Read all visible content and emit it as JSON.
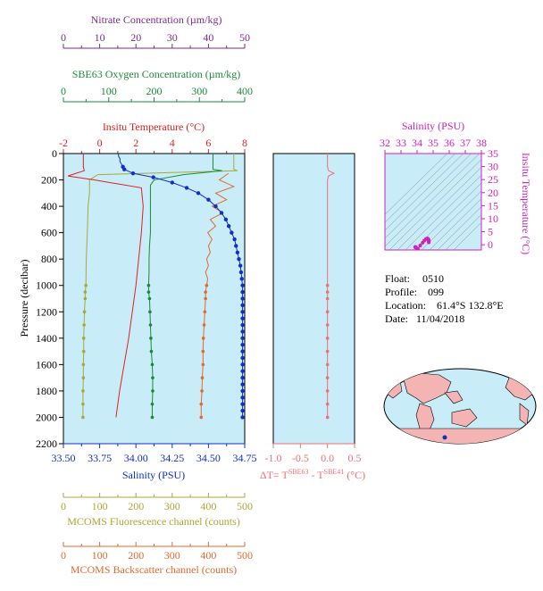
{
  "float_info": {
    "float_label": "Float:",
    "float_value": "0510",
    "profile_label": "Profile:",
    "profile_value": "099",
    "location_label": "Location:",
    "location_value": "61.4°S  132.8°E",
    "date_label": "Date:",
    "date_value": "11/04/2018"
  },
  "colors": {
    "nitrate": "#7b2a8c",
    "oxygen": "#1a8a3a",
    "temperature": "#e02020",
    "salinity": "#1030c8",
    "fluorescence": "#a8a838",
    "backscatter": "#e06a30",
    "delta": "#f07070",
    "ts": "#d020c0",
    "panel_bg": "#c8ecf8"
  },
  "chart_data": [
    {
      "type": "line",
      "name": "main-profile",
      "ylabel": "Pressure (decibar)",
      "y_ticks": [
        0,
        200,
        400,
        600,
        800,
        1000,
        1200,
        1400,
        1600,
        1800,
        2000,
        2200
      ],
      "ylim": [
        2200,
        0
      ],
      "axes": {
        "nitrate": {
          "label": "Nitrate Concentration (µm/kg)",
          "ticks": [
            0,
            10,
            20,
            30,
            40,
            50
          ],
          "range": [
            0,
            50
          ]
        },
        "oxygen": {
          "label": "SBE63 Oxygen Concentration (µm/kg)",
          "ticks": [
            0,
            100,
            200,
            300,
            400
          ],
          "range": [
            0,
            400
          ]
        },
        "temperature": {
          "label": "Insitu Temperature (°C)",
          "ticks": [
            -2,
            0,
            2,
            4,
            6,
            8
          ],
          "range": [
            -2,
            8
          ]
        },
        "salinity": {
          "label": "Salinity (PSU)",
          "ticks": [
            "33.50",
            "33.75",
            "34.00",
            "34.25",
            "34.50",
            "34.75"
          ],
          "range": [
            33.5,
            34.75
          ]
        },
        "fluorescence": {
          "label": "MCOMS Fluorescence channel (counts)",
          "ticks": [
            0,
            100,
            200,
            300,
            400,
            500
          ],
          "range": [
            0,
            500
          ]
        },
        "backscatter": {
          "label": "MCOMS Backscatter channel (counts)",
          "ticks": [
            0,
            100,
            200,
            300,
            400,
            500
          ],
          "range": [
            0,
            500
          ]
        }
      },
      "series": [
        {
          "name": "Salinity",
          "p": [
            0,
            20,
            40,
            60,
            80,
            100,
            120,
            150,
            180,
            220,
            260,
            300,
            350,
            400,
            450,
            500,
            550,
            600,
            650,
            700,
            750,
            800,
            850,
            900,
            950,
            1000,
            1050,
            1100,
            1150,
            1200,
            1250,
            1300,
            1350,
            1400,
            1450,
            1500,
            1550,
            1600,
            1650,
            1700,
            1750,
            1800,
            1850,
            1900,
            1950,
            2000
          ],
          "v": [
            33.88,
            33.88,
            33.89,
            33.89,
            33.9,
            33.91,
            33.92,
            33.98,
            34.12,
            34.25,
            34.35,
            34.43,
            34.5,
            34.55,
            34.59,
            34.62,
            34.64,
            34.66,
            34.68,
            34.69,
            34.7,
            34.71,
            34.72,
            34.725,
            34.73,
            34.735,
            34.735,
            34.735,
            34.735,
            34.735,
            34.735,
            34.735,
            34.735,
            34.735,
            34.735,
            34.735,
            34.735,
            34.735,
            34.735,
            34.735,
            34.735,
            34.735,
            34.735,
            34.735,
            34.735,
            34.735
          ]
        },
        {
          "name": "Temperature",
          "p": [
            0,
            100,
            130,
            150,
            170,
            200,
            260,
            400,
            600,
            800,
            1000,
            1200,
            1400,
            1600,
            1800,
            2000
          ],
          "v": [
            -0.9,
            -0.9,
            -0.85,
            -1.3,
            -1.75,
            -0.3,
            2.3,
            2.4,
            2.3,
            2.15,
            2.0,
            1.8,
            1.6,
            1.35,
            1.1,
            0.9
          ]
        },
        {
          "name": "Oxygen",
          "p": [
            0,
            120,
            130,
            160,
            200,
            240,
            280,
            330,
            400,
            500,
            600,
            700,
            800,
            900,
            1000,
            1050,
            1100,
            1200,
            1300,
            1400,
            1500,
            1600,
            1700,
            1800,
            1900,
            2000
          ],
          "v": [
            330,
            330,
            350,
            265,
            200,
            192,
            192,
            192,
            192,
            192,
            192,
            190,
            189,
            189,
            188,
            188,
            190,
            191,
            192,
            193,
            194,
            196,
            197,
            197,
            196,
            196
          ]
        },
        {
          "name": "Fluorescence",
          "p": [
            0,
            120,
            130,
            160,
            200,
            300,
            400,
            600,
            800,
            1000,
            1050,
            1100,
            1200,
            1300,
            1400,
            1500,
            1600,
            1700,
            1800,
            1900,
            2000
          ],
          "v": [
            470,
            470,
            480,
            95,
            72,
            72,
            68,
            66,
            63,
            62,
            60,
            60,
            58,
            57,
            56,
            56,
            55,
            55,
            54,
            54,
            54
          ]
        },
        {
          "name": "Backscatter",
          "p": [
            150,
            200,
            250,
            300,
            350,
            400,
            450,
            500,
            550,
            600,
            650,
            700,
            750,
            800,
            850,
            900,
            950,
            1000,
            1050,
            1100,
            1200,
            1300,
            1400,
            1500,
            1600,
            1700,
            1800,
            1900,
            2000
          ],
          "v": [
            455,
            430,
            470,
            420,
            450,
            410,
            440,
            405,
            420,
            398,
            410,
            400,
            405,
            395,
            400,
            392,
            398,
            395,
            392,
            392,
            390,
            388,
            386,
            385,
            385,
            383,
            382,
            380,
            380
          ]
        }
      ]
    },
    {
      "type": "line",
      "name": "delta-temperature",
      "xlabel": "ΔT= T^SBE63 - T^SBE41 (°C)",
      "xlabel_parts": {
        "lead": "ΔT= T",
        "sup1": "SBE63",
        "mid": " - T",
        "sup2": "SBE41",
        "tail": " (°C)"
      },
      "x_ticks": [
        "-1.0",
        "-0.5",
        "0.0",
        "0.5"
      ],
      "xlim": [
        -1.0,
        0.5
      ],
      "ylim": [
        2200,
        0
      ],
      "series": [
        {
          "name": "dT",
          "p": [
            0,
            100,
            130,
            150,
            170,
            200,
            400,
            600,
            800,
            1000,
            1050,
            1100,
            1200,
            1300,
            1400,
            1500,
            1600,
            1700,
            1800,
            1900,
            2000
          ],
          "v": [
            0.0,
            0.0,
            0.02,
            0.12,
            0.02,
            0.0,
            0.0,
            0.0,
            0.0,
            0.0,
            0.0,
            0.0,
            0.0,
            0.0,
            0.0,
            0.0,
            0.0,
            0.0,
            0.0,
            0.0,
            0.0
          ]
        }
      ]
    },
    {
      "type": "scatter",
      "name": "ts-diagram",
      "title": "Salinity (PSU)",
      "ylabel": "Insitu Temperature (°C)",
      "x_ticks": [
        32,
        33,
        34,
        35,
        36,
        37,
        38
      ],
      "y_ticks": [
        0,
        5,
        10,
        15,
        20,
        25,
        30,
        35
      ],
      "xlim": [
        32,
        38
      ],
      "ylim": [
        -2,
        35
      ],
      "points": {
        "s": [
          33.88,
          33.9,
          33.95,
          34.05,
          34.2,
          34.35,
          34.45,
          34.55,
          34.62,
          34.66,
          34.69,
          34.71,
          34.73,
          34.73,
          34.73
        ],
        "t": [
          -0.9,
          -0.85,
          -1.2,
          -1.5,
          -0.3,
          0.8,
          1.6,
          2.2,
          2.4,
          2.35,
          2.2,
          2.0,
          1.6,
          1.2,
          0.9
        ]
      }
    }
  ]
}
